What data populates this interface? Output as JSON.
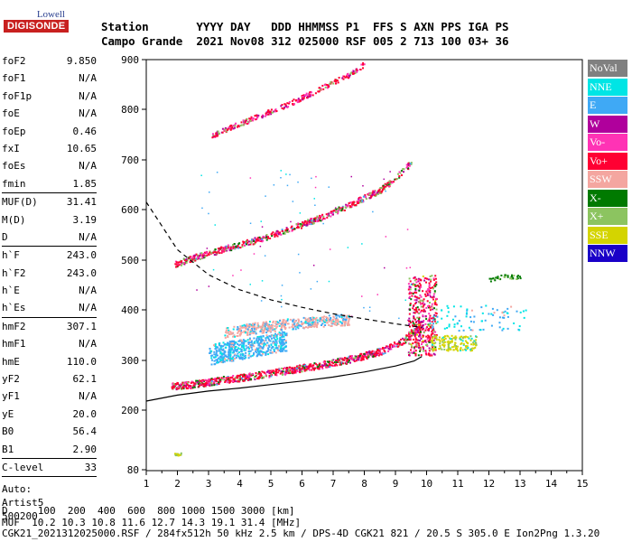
{
  "logo": {
    "line1": "Lowell",
    "line2": "DIGISONDE"
  },
  "header": {
    "line1": "Station       YYYY DAY   DDD HHMMSS P1  FFS S AXN PPS IGA PS",
    "line2": "Campo Grande  2021 Nov08 312 025000 RSF 005 2 713 100 03+ 36"
  },
  "params": [
    {
      "group": [
        {
          "label": "foF2",
          "value": "9.850"
        },
        {
          "label": "foF1",
          "value": "N/A"
        },
        {
          "label": "foF1p",
          "value": "N/A"
        },
        {
          "label": "foE",
          "value": "N/A"
        },
        {
          "label": "foEp",
          "value": "0.46"
        },
        {
          "label": "fxI",
          "value": "10.65"
        },
        {
          "label": "foEs",
          "value": "N/A"
        },
        {
          "label": "fmin",
          "value": "1.85"
        }
      ]
    },
    {
      "group": [
        {
          "label": "MUF(D)",
          "value": "31.41"
        },
        {
          "label": "M(D)",
          "value": "3.19"
        },
        {
          "label": "D",
          "value": "N/A"
        }
      ]
    },
    {
      "group": [
        {
          "label": "h`F",
          "value": "243.0"
        },
        {
          "label": "h`F2",
          "value": "243.0"
        },
        {
          "label": "h`E",
          "value": "N/A"
        },
        {
          "label": "h`Es",
          "value": "N/A"
        }
      ]
    },
    {
      "group": [
        {
          "label": "hmF2",
          "value": "307.1"
        },
        {
          "label": "hmF1",
          "value": "N/A"
        },
        {
          "label": "hmE",
          "value": "110.0"
        },
        {
          "label": "yF2",
          "value": "62.1"
        },
        {
          "label": "yF1",
          "value": "N/A"
        },
        {
          "label": "yE",
          "value": "20.0"
        },
        {
          "label": "B0",
          "value": "56.4"
        },
        {
          "label": "B1",
          "value": "2.90"
        }
      ]
    },
    {
      "group": [
        {
          "label": "C-level",
          "value": "33"
        }
      ]
    }
  ],
  "auto": {
    "line1": "Auto:",
    "line2": "Artist5",
    "line3": "500200"
  },
  "legend": [
    {
      "label": "NoVal",
      "color": "#808080"
    },
    {
      "label": "NNE",
      "color": "#00e5e5"
    },
    {
      "label": "E",
      "color": "#3fa9f5"
    },
    {
      "label": "W",
      "color": "#b0009c"
    },
    {
      "label": "Vo-",
      "color": "#ff33b5"
    },
    {
      "label": "Vo+",
      "color": "#ff0033"
    },
    {
      "label": "SSW",
      "color": "#f4a6a0"
    },
    {
      "label": "X-",
      "color": "#007a00"
    },
    {
      "label": "X+",
      "color": "#8cc460"
    },
    {
      "label": "SSE",
      "color": "#d4d400"
    },
    {
      "label": "NNW",
      "color": "#1a00c8"
    }
  ],
  "chart_data": {
    "type": "scatter",
    "xlim": [
      1,
      15
    ],
    "ylim": [
      80,
      900
    ],
    "xticks": [
      1,
      2,
      3,
      4,
      5,
      6,
      7,
      8,
      9,
      10,
      11,
      12,
      13,
      14,
      15
    ],
    "yticks": [
      80,
      200,
      300,
      400,
      500,
      600,
      700,
      800,
      900
    ],
    "ytick_labels": [
      "80",
      "200",
      "300",
      "400",
      "500",
      "600",
      "700",
      "800",
      "900"
    ],
    "grid": false,
    "traces": [
      {
        "mode": "O",
        "x": [
          1.8,
          2.5,
          3.5,
          4.5,
          5.5,
          6.5,
          7.5,
          8.5,
          9.2,
          9.6,
          9.85
        ],
        "y": [
          248,
          253,
          262,
          270,
          280,
          290,
          302,
          318,
          338,
          358,
          375
        ]
      },
      {
        "mode": "2F",
        "x": [
          1.9,
          2.5,
          3.5,
          4.5,
          5.5,
          6.5,
          7.5,
          8.5,
          9.0,
          9.5
        ],
        "y": [
          492,
          505,
          523,
          540,
          560,
          583,
          610,
          640,
          665,
          695
        ]
      },
      {
        "mode": "3F",
        "x": [
          3.0,
          3.5,
          4.5,
          5.5,
          6.5,
          7.5,
          8.0
        ],
        "y": [
          745,
          760,
          785,
          810,
          840,
          870,
          892
        ]
      },
      {
        "mode": "spread-E",
        "x": [
          3.0,
          3.5,
          4.0,
          4.5,
          5.0,
          5.5
        ],
        "y": [
          310,
          318,
          322,
          328,
          334,
          340
        ]
      },
      {
        "mode": "spread-SSW",
        "x": [
          3.5,
          4.5,
          5.5,
          6.5,
          7.5
        ],
        "y": [
          355,
          365,
          372,
          378,
          382
        ]
      },
      {
        "mode": "east-X",
        "x": [
          12.0,
          12.5,
          13.0
        ],
        "y": [
          462,
          468,
          466
        ]
      },
      {
        "mode": "low",
        "x": [
          1.9,
          2.0,
          2.1
        ],
        "y": [
          112,
          112,
          113
        ]
      }
    ],
    "profile": {
      "x": [
        1.0,
        2.0,
        3.0,
        4.0,
        5.0,
        6.0,
        7.0,
        8.0,
        9.0,
        9.6,
        9.85
      ],
      "y": [
        218,
        230,
        238,
        244,
        251,
        258,
        266,
        276,
        288,
        298,
        307
      ]
    },
    "profile_ext": {
      "x": [
        1.0,
        2.0,
        3.0,
        4.0,
        5.0,
        6.0,
        7.0,
        8.0,
        9.0,
        9.85
      ],
      "y": [
        615,
        520,
        470,
        440,
        420,
        405,
        392,
        382,
        372,
        365
      ]
    }
  },
  "footer": {
    "line1": "D     100  200  400  600  800 1000 1500 3000 [km]",
    "line2": "MUF  10.2 10.3 10.8 11.6 12.7 14.3 19.1 31.4 [MHz]",
    "line3": "CGK21_2021312025000.RSF / 284fx512h 50 kHz 2.5 km / DPS-4D CGK21 821 / 20.5 S 305.0 E Ion2Png 1.3.20"
  }
}
